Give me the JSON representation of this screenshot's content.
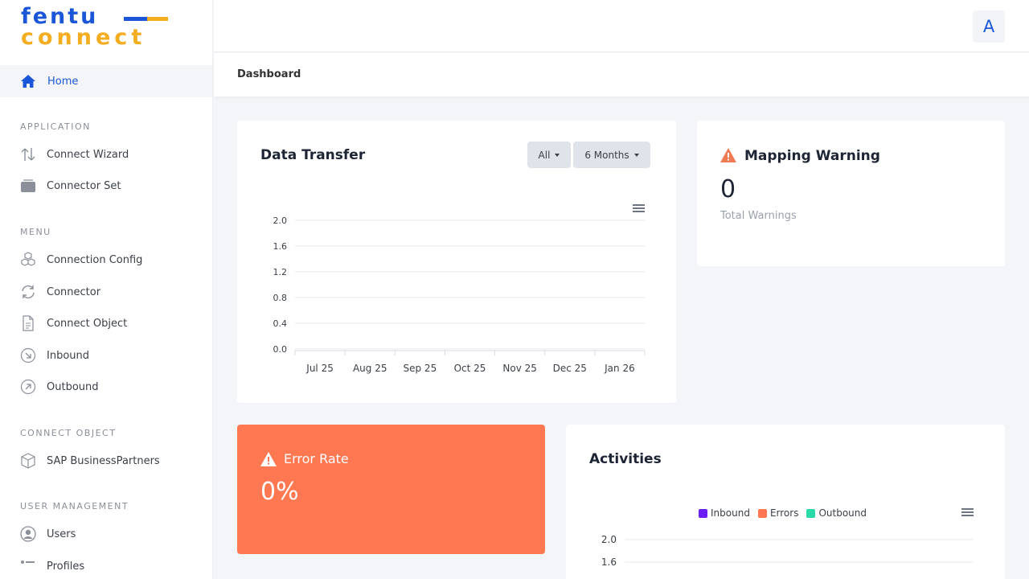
{
  "logo": {
    "line1": "fentu",
    "line2": "connect"
  },
  "sidebar": {
    "home": "Home",
    "sections": [
      {
        "title": "APPLICATION",
        "items": [
          "Connect Wizard",
          "Connector Set"
        ]
      },
      {
        "title": "MENU",
        "items": [
          "Connection Config",
          "Connector",
          "Connect Object",
          "Inbound",
          "Outbound"
        ]
      },
      {
        "title": "CONNECT OBJECT",
        "items": [
          "SAP BusinessPartners"
        ]
      },
      {
        "title": "USER MANAGEMENT",
        "items": [
          "Users",
          "Profiles"
        ]
      }
    ]
  },
  "topbar": {
    "avatar_letter": "A"
  },
  "breadcrumb": "Dashboard",
  "data_transfer": {
    "title": "Data Transfer",
    "filter_all": "All",
    "filter_period": "6 Months"
  },
  "mapping_warning": {
    "title": "Mapping Warning",
    "value": "0",
    "subtitle": "Total Warnings"
  },
  "error_rate": {
    "title": "Error Rate",
    "value": "0%"
  },
  "activities": {
    "title": "Activities"
  },
  "colors": {
    "primary": "#1c56d8",
    "accent": "#f4ad21",
    "error": "#ff7851",
    "warning": "#f07b52",
    "inbound": "#6a1ff5",
    "errors": "#ff7851",
    "outbound": "#2ad9a8"
  },
  "chart_data": [
    {
      "type": "line",
      "title": "",
      "categories": [
        "Jul 25",
        "Aug 25",
        "Sep 25",
        "Oct 25",
        "Nov 25",
        "Dec 25",
        "Jan 26"
      ],
      "y_ticks": [
        "0.0",
        "0.4",
        "0.8",
        "1.2",
        "1.6",
        "2.0"
      ],
      "ylim": [
        0,
        2
      ],
      "series": [],
      "grid": true
    },
    {
      "type": "line",
      "title": "",
      "y_ticks": [
        "1.6",
        "2.0"
      ],
      "ylim": [
        0,
        2
      ],
      "legend": "top-center",
      "series": [
        {
          "name": "Inbound",
          "values": []
        },
        {
          "name": "Errors",
          "values": []
        },
        {
          "name": "Outbound",
          "values": []
        }
      ],
      "grid": true
    }
  ]
}
